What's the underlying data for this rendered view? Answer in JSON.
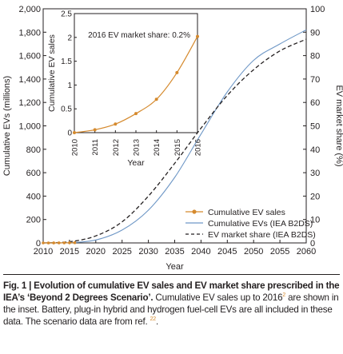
{
  "chart_data": [
    {
      "type": "line",
      "x": [
        2010,
        2015,
        2020,
        2025,
        2030,
        2035,
        2040,
        2045,
        2050,
        2055,
        2060
      ],
      "xlabel": "Year",
      "x_ticks": [
        "2010",
        "2015",
        "2020",
        "2025",
        "2030",
        "2035",
        "2040",
        "2045",
        "2050",
        "2055",
        "2060"
      ],
      "xlim": [
        2010,
        2060
      ],
      "ylabel": "Cumulative EVs (millions)",
      "ylim": [
        0,
        2000
      ],
      "y_ticks": [
        "0",
        "200",
        "400",
        "600",
        "800",
        "1,000",
        "1,200",
        "1,400",
        "1,600",
        "1,800",
        "2,000"
      ],
      "y2label": "EV market share (%)",
      "y2lim": [
        0,
        100
      ],
      "y2_ticks": [
        "0",
        "10",
        "20",
        "30",
        "40",
        "50",
        "60",
        "70",
        "80",
        "90",
        "100"
      ],
      "legend_position": "bottom-right",
      "series": [
        {
          "name": "Cumulative EV sales",
          "style": "orange line with dot markers",
          "color": "#d58a2e",
          "x": [
            2010,
            2011,
            2012,
            2013,
            2014,
            2015,
            2016
          ],
          "values": [
            0,
            0.06,
            0.18,
            0.4,
            0.7,
            1.26,
            2.02
          ]
        },
        {
          "name": "Cumulative EVs (IEA B2DS)",
          "style": "thin solid blue line",
          "color": "#6e97c6",
          "axis": "left",
          "values": [
            0,
            2,
            25,
            110,
            280,
            560,
            930,
            1290,
            1560,
            1700,
            1820
          ]
        },
        {
          "name": "EV market share (IEA B2DS)",
          "style": "black dashed line",
          "color": "#231f20",
          "axis": "right",
          "values": [
            0,
            0.5,
            3,
            9,
            20,
            34,
            49,
            63,
            74,
            82,
            87
          ]
        }
      ]
    },
    {
      "type": "line",
      "role": "inset",
      "xlabel": "Year",
      "ylabel": "Cumulative EV sales",
      "annotation": "2016 EV market share: 0.2%",
      "x": [
        2010,
        2011,
        2012,
        2013,
        2014,
        2015,
        2016
      ],
      "x_ticks": [
        "2010",
        "2011",
        "2012",
        "2013",
        "2014",
        "2015",
        "2016"
      ],
      "xlim": [
        2010,
        2016
      ],
      "ylim": [
        0,
        2.5
      ],
      "y_ticks": [
        "0",
        "0.5",
        "1",
        "1.5",
        "2",
        "2.5"
      ],
      "series": [
        {
          "color": "#d58a2e",
          "values": [
            0,
            0.06,
            0.18,
            0.4,
            0.7,
            1.26,
            2.02
          ]
        }
      ]
    }
  ],
  "caption": {
    "bold": "Fig. 1 | Evolution of cumulative EV sales and EV market share prescribed in the IEA’s ‘Beyond 2 Degrees Scenario’.",
    "text1": " Cumulative EV sales up to 2016",
    "ref1": "2",
    "text2": " are shown in the inset. Battery, plug-in hybrid and hydrogen fuel-cell EVs are all included in these data. The scenario data are from ref. ",
    "ref2": "22",
    "text3": "."
  }
}
